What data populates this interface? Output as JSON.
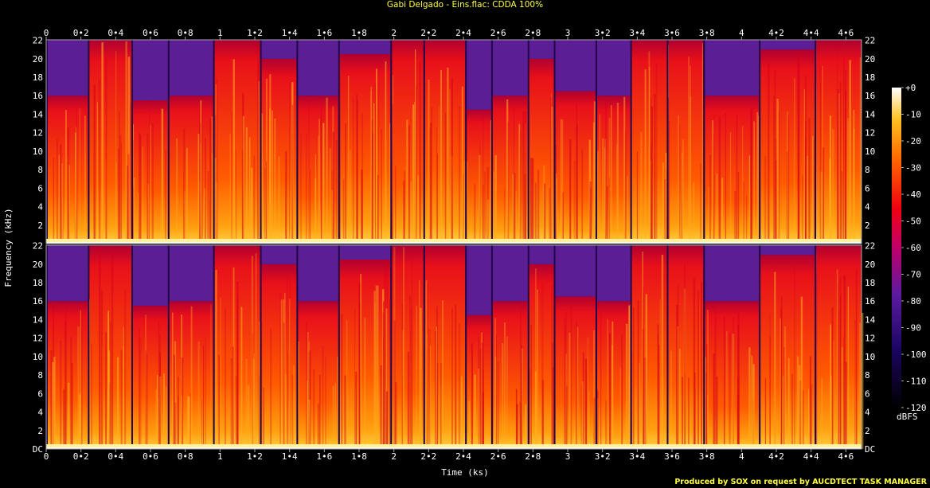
{
  "title": "Gabi Delgado - Eins.flac: CDDA 100%",
  "credit": "Produced by SOX on request by AUCDTECT TASK MANAGER",
  "chart_data": {
    "type": "heatmap",
    "title": "Gabi Delgado - Eins.flac: CDDA 100%",
    "xlabel": "Time (ks)",
    "ylabel": "Frequency (kHz)",
    "xlim": [
      0,
      4.69
    ],
    "ylim": [
      0,
      22.05
    ],
    "x_ticks": [
      "0",
      "0•2",
      "0•4",
      "0•6",
      "0•8",
      "1",
      "1•2",
      "1•4",
      "1•6",
      "1•8",
      "2",
      "2•2",
      "2•4",
      "2•6",
      "2•8",
      "3",
      "3•2",
      "3•4",
      "3•6",
      "3•8",
      "4",
      "4•2",
      "4•4",
      "4•6"
    ],
    "y_ticks_top": [
      "22",
      "20",
      "18",
      "16",
      "14",
      "12",
      "10",
      "8",
      "6",
      "4",
      "2"
    ],
    "y_ticks_bottom": [
      "22",
      "20",
      "18",
      "16",
      "14",
      "12",
      "10",
      "8",
      "6",
      "4",
      "2",
      "DC"
    ],
    "channels": 2,
    "colorbar": {
      "label": "dBFS",
      "ticks": [
        "+0",
        "-10",
        "-20",
        "-30",
        "-40",
        "-50",
        "-60",
        "-70",
        "-80",
        "-90",
        "-100",
        "-110",
        "-120"
      ],
      "range": [
        -120,
        0
      ]
    },
    "colors": {
      "low": "#000000",
      "mid_low": "#3a0a7a",
      "mid": "#e8001e",
      "high": "#ffb000",
      "peak": "#ffffff"
    },
    "tracks": [
      {
        "start": 0.0,
        "end": 0.24,
        "cutoff": 16.0,
        "level": 0.62
      },
      {
        "start": 0.24,
        "end": 0.49,
        "cutoff": 22.0,
        "level": 0.55
      },
      {
        "start": 0.49,
        "end": 0.7,
        "cutoff": 15.5,
        "level": 0.66
      },
      {
        "start": 0.7,
        "end": 0.96,
        "cutoff": 16.0,
        "level": 0.68
      },
      {
        "start": 0.96,
        "end": 1.23,
        "cutoff": 22.0,
        "level": 0.6
      },
      {
        "start": 1.23,
        "end": 1.44,
        "cutoff": 20.0,
        "level": 0.64
      },
      {
        "start": 1.44,
        "end": 1.68,
        "cutoff": 16.0,
        "level": 0.58
      },
      {
        "start": 1.68,
        "end": 1.98,
        "cutoff": 20.5,
        "level": 0.7
      },
      {
        "start": 1.98,
        "end": 2.17,
        "cutoff": 22.0,
        "level": 0.52
      },
      {
        "start": 2.17,
        "end": 2.41,
        "cutoff": 22.0,
        "level": 0.66
      },
      {
        "start": 2.41,
        "end": 2.56,
        "cutoff": 14.5,
        "level": 0.72
      },
      {
        "start": 2.56,
        "end": 2.77,
        "cutoff": 16.0,
        "level": 0.6
      },
      {
        "start": 2.77,
        "end": 2.92,
        "cutoff": 20.0,
        "level": 0.62
      },
      {
        "start": 2.92,
        "end": 3.16,
        "cutoff": 16.5,
        "level": 0.56
      },
      {
        "start": 3.16,
        "end": 3.36,
        "cutoff": 16.0,
        "level": 0.6
      },
      {
        "start": 3.36,
        "end": 3.57,
        "cutoff": 22.0,
        "level": 0.64
      },
      {
        "start": 3.57,
        "end": 3.78,
        "cutoff": 22.0,
        "level": 0.58
      },
      {
        "start": 3.78,
        "end": 4.1,
        "cutoff": 16.0,
        "level": 0.52
      },
      {
        "start": 4.1,
        "end": 4.42,
        "cutoff": 21.0,
        "level": 0.58
      },
      {
        "start": 4.42,
        "end": 4.69,
        "cutoff": 22.0,
        "level": 0.66
      }
    ]
  }
}
